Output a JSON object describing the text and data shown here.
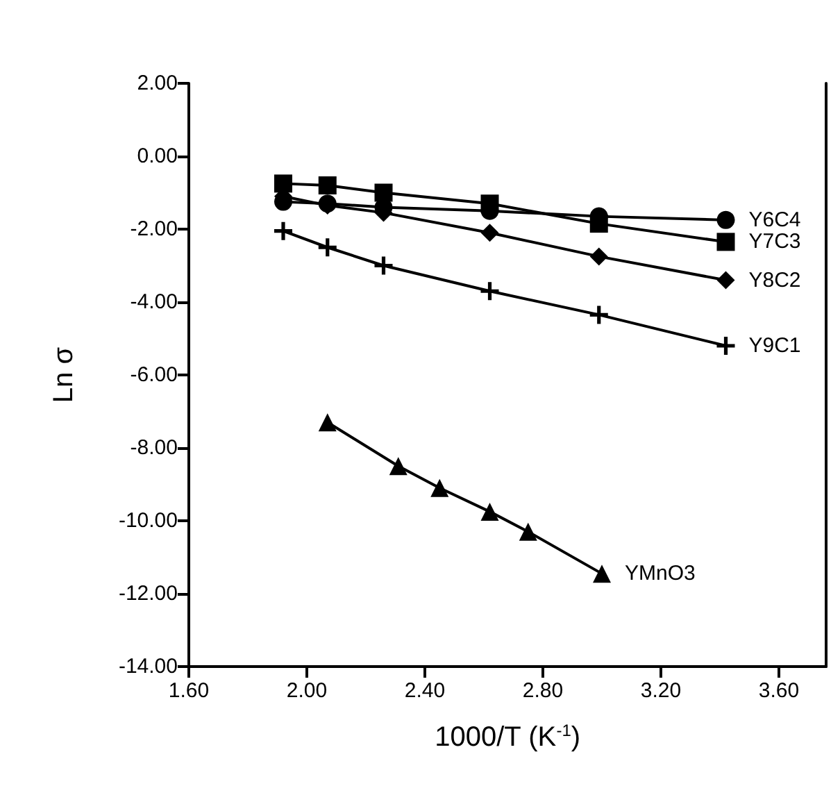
{
  "chart_data": {
    "type": "line",
    "xlabel": "1000/T (K$^{-1}$)",
    "ylabel": "Ln σ",
    "xlim": [
      1.6,
      3.76
    ],
    "ylim": [
      -14,
      2
    ],
    "xticks": [
      {
        "value": 1.6,
        "label": "1.60"
      },
      {
        "value": 2.0,
        "label": "2.00"
      },
      {
        "value": 2.4,
        "label": "2.40"
      },
      {
        "value": 2.8,
        "label": "2.80"
      },
      {
        "value": 3.2,
        "label": "3.20"
      },
      {
        "value": 3.6,
        "label": "3.60"
      }
    ],
    "yticks": [
      {
        "value": 2,
        "label": "2.00"
      },
      {
        "value": 0,
        "label": "0.00"
      },
      {
        "value": -2,
        "label": "-2.00"
      },
      {
        "value": -4,
        "label": "-4.00"
      },
      {
        "value": -6,
        "label": "-6.00"
      },
      {
        "value": -8,
        "label": "-8.00"
      },
      {
        "value": -10,
        "label": "-10.00"
      },
      {
        "value": -12,
        "label": "-12.00"
      },
      {
        "value": -14,
        "label": "-14.00"
      }
    ],
    "grid": false,
    "legend": false,
    "series": [
      {
        "name": "Y6C4",
        "color": "#000000",
        "marker": "circle",
        "x": [
          1.92,
          2.07,
          2.26,
          2.62,
          2.99,
          3.42
        ],
        "values": [
          -1.25,
          -1.3,
          -1.4,
          -1.5,
          -1.65,
          -1.75
        ]
      },
      {
        "name": "Y7C3",
        "color": "#000000",
        "marker": "square",
        "x": [
          1.92,
          2.07,
          2.26,
          2.62,
          2.99,
          3.42
        ],
        "values": [
          -0.75,
          -0.8,
          -1.0,
          -1.3,
          -1.85,
          -2.35
        ]
      },
      {
        "name": "Y8C2",
        "color": "#000000",
        "marker": "diamond",
        "x": [
          1.92,
          2.07,
          2.26,
          2.62,
          2.99,
          3.42
        ],
        "values": [
          -1.1,
          -1.35,
          -1.55,
          -2.1,
          -2.75,
          -3.4
        ]
      },
      {
        "name": "Y9C1",
        "color": "#000000",
        "marker": "cross",
        "x": [
          1.92,
          2.07,
          2.26,
          2.62,
          2.99,
          3.42
        ],
        "values": [
          -2.05,
          -2.5,
          -3.0,
          -3.7,
          -4.35,
          -5.2
        ]
      },
      {
        "name": "YMnO3",
        "color": "#000000",
        "marker": "triangle",
        "x": [
          2.07,
          2.31,
          2.45,
          2.62,
          2.75,
          3.0
        ],
        "values": [
          -7.3,
          -8.5,
          -9.1,
          -9.75,
          -10.3,
          -11.45
        ]
      }
    ]
  }
}
